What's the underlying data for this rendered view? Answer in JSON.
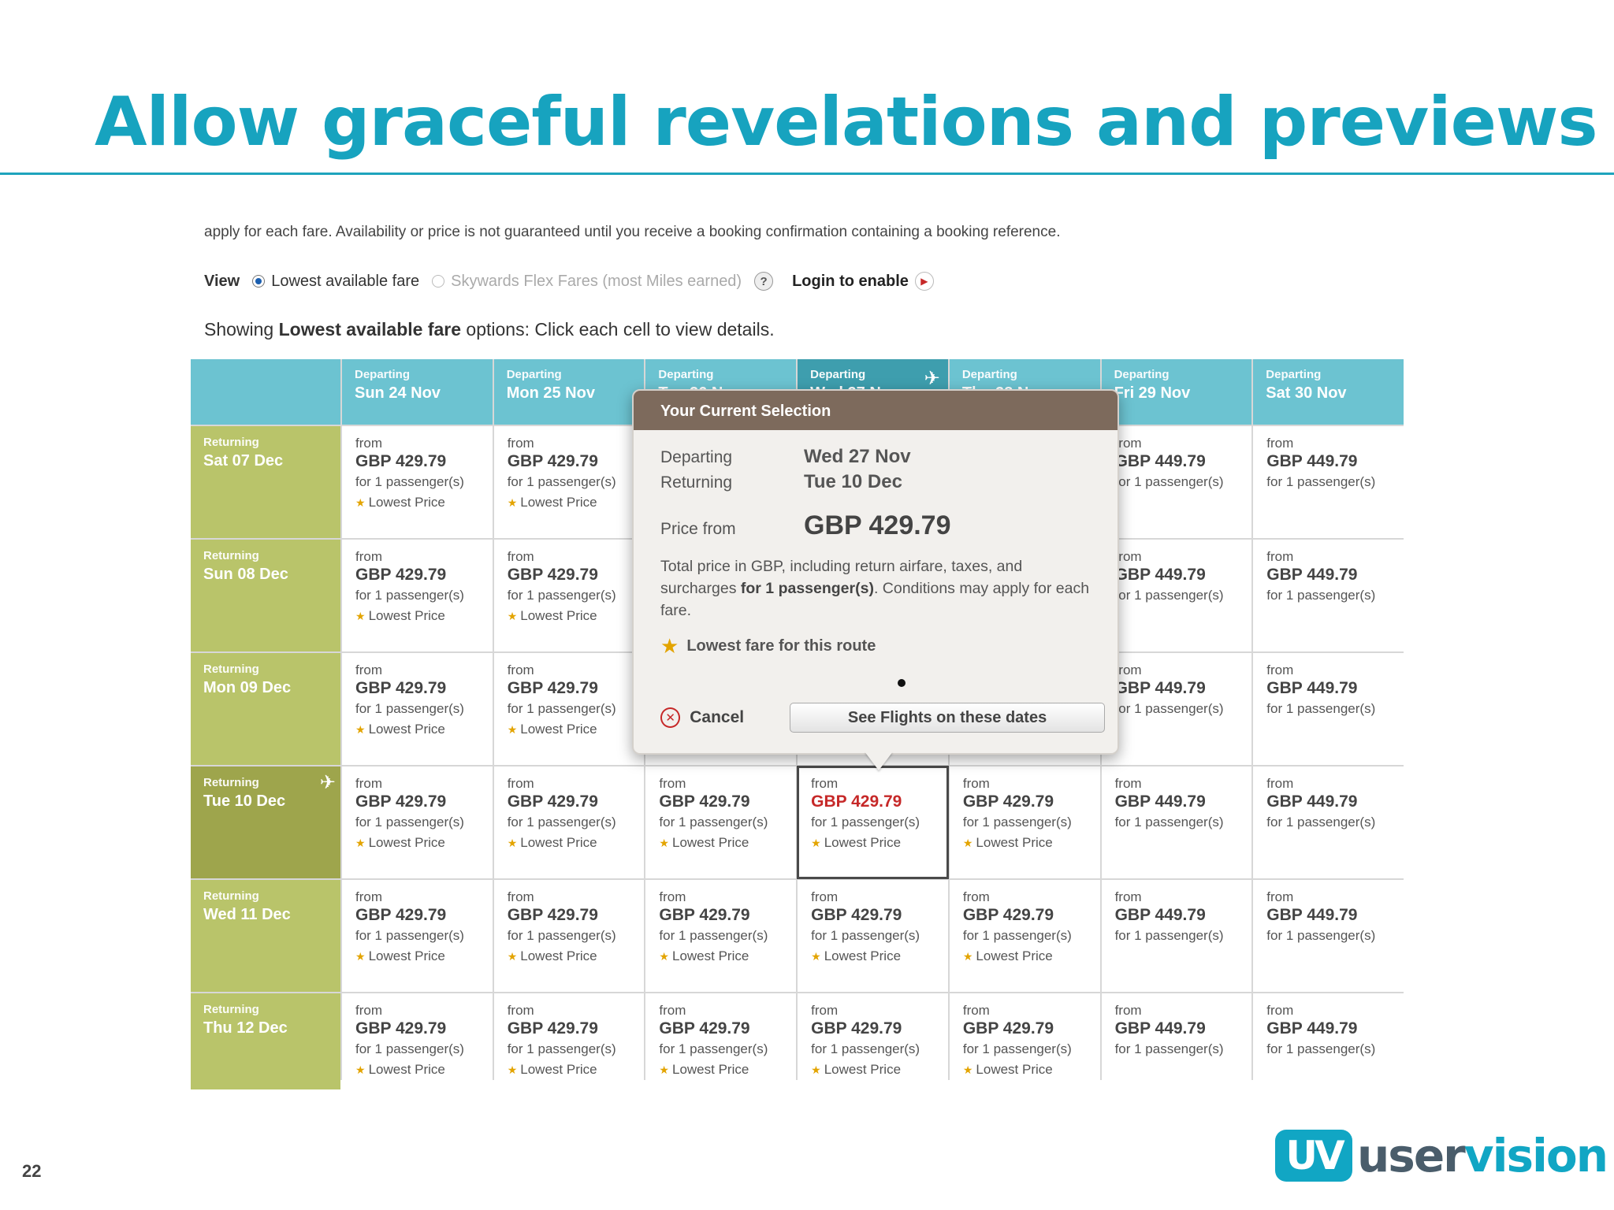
{
  "slide": {
    "title": "Allow graceful revelations and previews",
    "page_number": "22",
    "logo_mark": "UV",
    "logo_user": "user",
    "logo_vision": "vision"
  },
  "disclaimer": "apply for each fare. Availability or price is not guaranteed until you receive a booking confirmation containing a booking reference.",
  "view": {
    "label": "View",
    "option_lowest": "Lowest available fare",
    "option_flex": "Skywards Flex Fares (most Miles earned)",
    "help": "?",
    "login": "Login to enable"
  },
  "showing": {
    "prefix": "Showing",
    "bold": "Lowest available fare",
    "suffix": "options: Click each cell to view details."
  },
  "grid": {
    "departing_label": "Departing",
    "returning_label": "Returning",
    "cell_from": "from",
    "cell_pax": "for 1 passenger(s)",
    "cell_lowest": "Lowest Price",
    "columns": [
      "Sun 24 Nov",
      "Mon 25 Nov",
      "Tue 26 Nov",
      "Wed 27 Nov",
      "Thu 28 Nov",
      "Fri 29 Nov",
      "Sat 30 Nov"
    ],
    "rows": [
      "Sat 07 Dec",
      "Sun 08 Dec",
      "Mon 09 Dec",
      "Tue 10 Dec",
      "Wed 11 Dec",
      "Thu 12 Dec"
    ],
    "prices": [
      "GBP 429.79",
      "GBP 429.79",
      "GBP 429.79",
      "GBP 429.79",
      "GBP 429.79",
      "GBP 449.79",
      "GBP 449.79"
    ],
    "lowest_flags": [
      true,
      true,
      true,
      true,
      true,
      false,
      false
    ],
    "selected": {
      "row": 3,
      "col": 3
    }
  },
  "popup": {
    "title": "Your Current Selection",
    "departing_label": "Departing",
    "departing_value": "Wed 27 Nov",
    "returning_label": "Returning",
    "returning_value": "Tue 10 Dec",
    "price_label": "Price from",
    "price_value": "GBP 429.79",
    "text_a": "Total price in GBP, including return airfare, taxes, and surcharges",
    "text_bold": "for 1 passenger(s)",
    "text_b": ". Conditions may apply for each fare.",
    "lowest": "Lowest fare for this route",
    "cancel": "Cancel",
    "see_flights": "See Flights on these dates"
  },
  "colors": {
    "title": "#17a3bf",
    "departing_header": "#6cc3d1",
    "returning_header": "#b9c46a",
    "popup_header": "#7d6a5c",
    "selected_price": "#c62828"
  }
}
